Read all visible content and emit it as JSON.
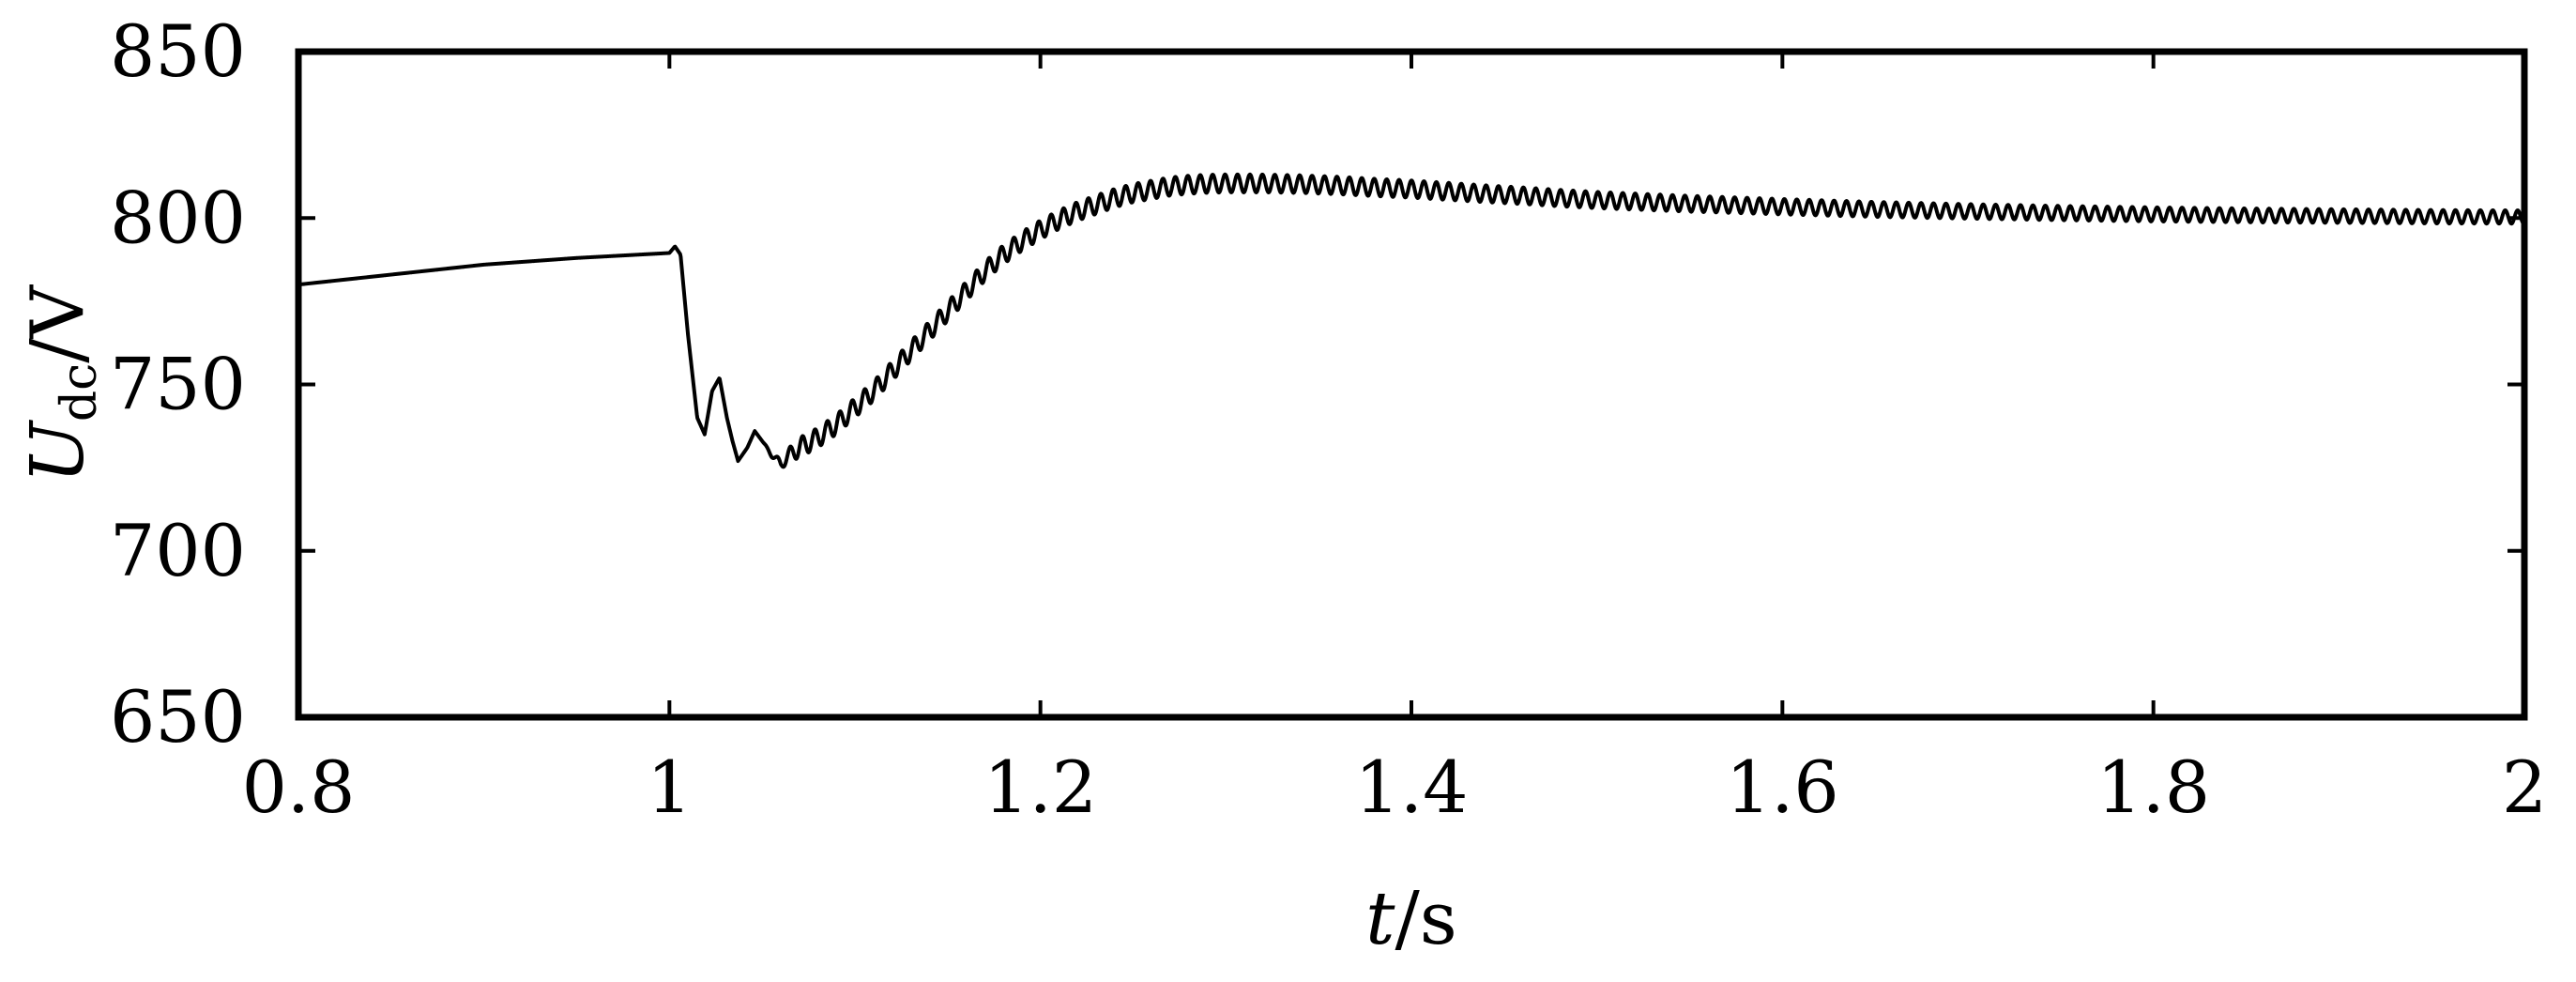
{
  "chart_data": {
    "type": "line",
    "title": "",
    "xlabel": {
      "var": "t",
      "unit": "/s"
    },
    "ylabel": {
      "var": "U",
      "sub": "dc",
      "unit": "/V"
    },
    "xlim": [
      0.8,
      2.0
    ],
    "ylim": [
      650,
      850
    ],
    "xticks": [
      0.8,
      1.0,
      1.2,
      1.4,
      1.6,
      1.8,
      2.0
    ],
    "xtick_labels": [
      "0.8",
      "1",
      "1.2",
      "1.4",
      "1.6",
      "1.8",
      "2"
    ],
    "yticks": [
      650,
      700,
      750,
      800,
      850
    ],
    "ytick_labels": [
      "650",
      "700",
      "750",
      "800",
      "850"
    ],
    "grid": false,
    "legend": "none",
    "line_color": "#000000",
    "series": [
      {
        "x": [
          0.8,
          0.85,
          0.9,
          0.95,
          1.0,
          1.003,
          1.006,
          1.01,
          1.015,
          1.019,
          1.023,
          1.027,
          1.031,
          1.034,
          1.037,
          1.042,
          1.046,
          1.05,
          1.055,
          1.06,
          1.065,
          1.07,
          1.08,
          1.09,
          1.1,
          1.11,
          1.12,
          1.13,
          1.14,
          1.15,
          1.16,
          1.17,
          1.18,
          1.19,
          1.2,
          1.21,
          1.22,
          1.23,
          1.24,
          1.25,
          1.26,
          1.27,
          1.28,
          1.29,
          1.3,
          1.32,
          1.34,
          1.36,
          1.38,
          1.4,
          1.42,
          1.44,
          1.46,
          1.48,
          1.5,
          1.55,
          1.6,
          1.65,
          1.7,
          1.75,
          1.8,
          1.85,
          1.9,
          1.95,
          2.0
        ],
        "y": [
          780,
          783,
          786,
          788,
          789.5,
          791.5,
          789,
          765,
          740,
          735,
          748,
          752,
          740,
          733,
          727,
          731,
          736,
          733,
          729,
          726,
          729,
          731,
          734,
          738,
          743,
          748,
          754,
          760,
          766,
          772,
          778,
          784,
          789,
          793,
          796.5,
          799.5,
          802,
          804,
          806,
          807.5,
          808.5,
          809.5,
          810,
          810.3,
          810.4,
          810.4,
          810.2,
          809.8,
          809.2,
          808.7,
          808,
          807.3,
          806.7,
          806,
          805.4,
          804.3,
          803.4,
          802.6,
          802,
          801.5,
          801.1,
          800.8,
          800.6,
          800.4,
          800.3
        ],
        "ripple_start": 1.05,
        "ripple_period": 0.0067,
        "ripple_amplitude": [
          [
            1.05,
            3.0
          ],
          [
            1.4,
            2.6
          ],
          [
            1.7,
            2.2
          ],
          [
            2.0,
            2.0
          ]
        ]
      }
    ]
  }
}
